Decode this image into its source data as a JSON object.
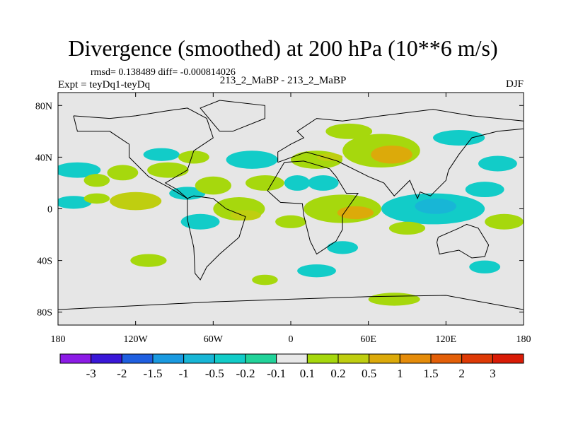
{
  "chart_data": {
    "type": "heatmap",
    "title": "Divergence (smoothed) at 200 hPa (10**6 m/s)",
    "stats": "rmsd= 0.138489 diff= -0.000814026",
    "experiment": "Expt = teyDq1-teyDq",
    "case": "213_2_MaBP - 213_2_MaBP",
    "season": "DJF",
    "x_ticks": [
      "180",
      "120W",
      "60W",
      "0",
      "60E",
      "120E",
      "180"
    ],
    "y_ticks": [
      "80N",
      "40N",
      "0",
      "40S",
      "80S"
    ],
    "xlim": [
      -180,
      180
    ],
    "ylim": [
      -90,
      90
    ],
    "colorbar": {
      "colors": [
        "#8c1be6",
        "#3a17d8",
        "#1f5fe0",
        "#1a9ae0",
        "#18b6d6",
        "#12ccc8",
        "#22d39a",
        "#e8e8e8",
        "#a6d80d",
        "#bfce10",
        "#dcaa0a",
        "#e58c0a",
        "#e35f08",
        "#de3a06",
        "#d91b06"
      ],
      "labels": [
        "-3",
        "-2",
        "-1.5",
        "-1",
        "-0.5",
        "-0.2",
        "-0.1",
        "0.1",
        "0.2",
        "0.5",
        "1",
        "1.5",
        "2",
        "3"
      ]
    },
    "blobs": [
      {
        "lon": -165,
        "lat": 30,
        "rx": 18,
        "ry": 6,
        "level": 5
      },
      {
        "lon": -150,
        "lat": 22,
        "rx": 10,
        "ry": 5,
        "level": 8
      },
      {
        "lon": -168,
        "lat": 5,
        "rx": 14,
        "ry": 5,
        "level": 5
      },
      {
        "lon": -150,
        "lat": 8,
        "rx": 10,
        "ry": 4,
        "level": 8
      },
      {
        "lon": -120,
        "lat": 6,
        "rx": 20,
        "ry": 7,
        "level": 9
      },
      {
        "lon": -130,
        "lat": 28,
        "rx": 12,
        "ry": 6,
        "level": 8
      },
      {
        "lon": -100,
        "lat": 42,
        "rx": 14,
        "ry": 5,
        "level": 5
      },
      {
        "lon": -95,
        "lat": 30,
        "rx": 16,
        "ry": 6,
        "level": 8
      },
      {
        "lon": -75,
        "lat": 40,
        "rx": 12,
        "ry": 5,
        "level": 8
      },
      {
        "lon": -80,
        "lat": 12,
        "rx": 14,
        "ry": 5,
        "level": 5
      },
      {
        "lon": -60,
        "lat": 18,
        "rx": 14,
        "ry": 7,
        "level": 8
      },
      {
        "lon": -70,
        "lat": -10,
        "rx": 15,
        "ry": 6,
        "level": 5
      },
      {
        "lon": -40,
        "lat": 0,
        "rx": 20,
        "ry": 9,
        "level": 8
      },
      {
        "lon": -35,
        "lat": -5,
        "rx": 12,
        "ry": 4,
        "level": 9
      },
      {
        "lon": -30,
        "lat": 38,
        "rx": 20,
        "ry": 7,
        "level": 5
      },
      {
        "lon": -20,
        "lat": 20,
        "rx": 15,
        "ry": 6,
        "level": 8
      },
      {
        "lon": 5,
        "lat": 20,
        "rx": 10,
        "ry": 6,
        "level": 5
      },
      {
        "lon": 20,
        "lat": 38,
        "rx": 20,
        "ry": 7,
        "level": 8
      },
      {
        "lon": 30,
        "lat": 40,
        "rx": 10,
        "ry": 3,
        "level": 9
      },
      {
        "lon": 45,
        "lat": 60,
        "rx": 18,
        "ry": 6,
        "level": 8
      },
      {
        "lon": 70,
        "lat": 45,
        "rx": 30,
        "ry": 13,
        "level": 8
      },
      {
        "lon": 78,
        "lat": 42,
        "rx": 16,
        "ry": 7,
        "level": 10
      },
      {
        "lon": 130,
        "lat": 55,
        "rx": 20,
        "ry": 6,
        "level": 5
      },
      {
        "lon": 160,
        "lat": 35,
        "rx": 15,
        "ry": 6,
        "level": 5
      },
      {
        "lon": 40,
        "lat": 0,
        "rx": 30,
        "ry": 11,
        "level": 8
      },
      {
        "lon": 50,
        "lat": -3,
        "rx": 14,
        "ry": 5,
        "level": 10
      },
      {
        "lon": 25,
        "lat": 20,
        "rx": 12,
        "ry": 6,
        "level": 5
      },
      {
        "lon": 110,
        "lat": 0,
        "rx": 40,
        "ry": 12,
        "level": 5
      },
      {
        "lon": 112,
        "lat": 2,
        "rx": 16,
        "ry": 6,
        "level": 4
      },
      {
        "lon": 150,
        "lat": 15,
        "rx": 15,
        "ry": 6,
        "level": 5
      },
      {
        "lon": 165,
        "lat": -10,
        "rx": 15,
        "ry": 6,
        "level": 8
      },
      {
        "lon": 90,
        "lat": -15,
        "rx": 14,
        "ry": 5,
        "level": 8
      },
      {
        "lon": 40,
        "lat": -30,
        "rx": 12,
        "ry": 5,
        "level": 5
      },
      {
        "lon": 0,
        "lat": -10,
        "rx": 12,
        "ry": 5,
        "level": 8
      },
      {
        "lon": -110,
        "lat": -40,
        "rx": 14,
        "ry": 5,
        "level": 8
      },
      {
        "lon": -20,
        "lat": -55,
        "rx": 10,
        "ry": 4,
        "level": 8
      },
      {
        "lon": 20,
        "lat": -48,
        "rx": 15,
        "ry": 5,
        "level": 5
      },
      {
        "lon": 80,
        "lat": -70,
        "rx": 20,
        "ry": 5,
        "level": 8
      },
      {
        "lon": 150,
        "lat": -45,
        "rx": 12,
        "ry": 5,
        "level": 5
      }
    ]
  }
}
